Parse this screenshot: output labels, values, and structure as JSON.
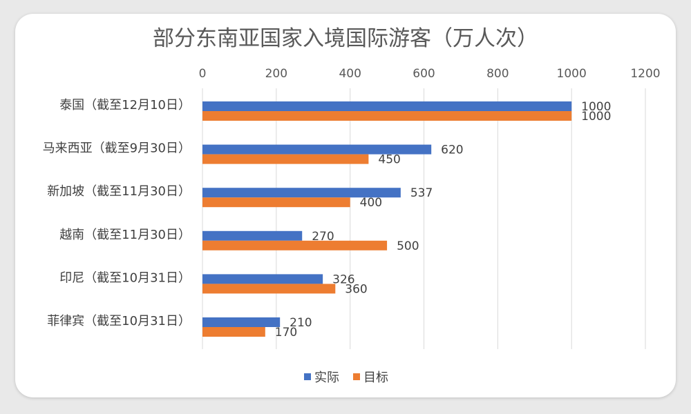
{
  "chart_data": {
    "type": "bar",
    "orientation": "horizontal",
    "title": "部分东南亚国家入境国际游客（万人次）",
    "categories": [
      "泰国（截至12月10日）",
      "马来西亚（截至9月30日）",
      "新加坡（截至11月30日）",
      "越南（截至11月30日）",
      "印尼（截至10月31日）",
      "菲律宾（截至10月31日）"
    ],
    "series": [
      {
        "name": "实际",
        "color": "#4472c4",
        "values": [
          1000,
          620,
          537,
          270,
          326,
          210
        ]
      },
      {
        "name": "目标",
        "color": "#ed7d31",
        "values": [
          1000,
          450,
          400,
          500,
          360,
          170
        ]
      }
    ],
    "xlim": [
      0,
      1200
    ],
    "xticks": [
      "0",
      "200",
      "400",
      "600",
      "800",
      "1000",
      "1200"
    ],
    "xaxis_position": "top",
    "grid": true,
    "legend_position": "bottom"
  }
}
